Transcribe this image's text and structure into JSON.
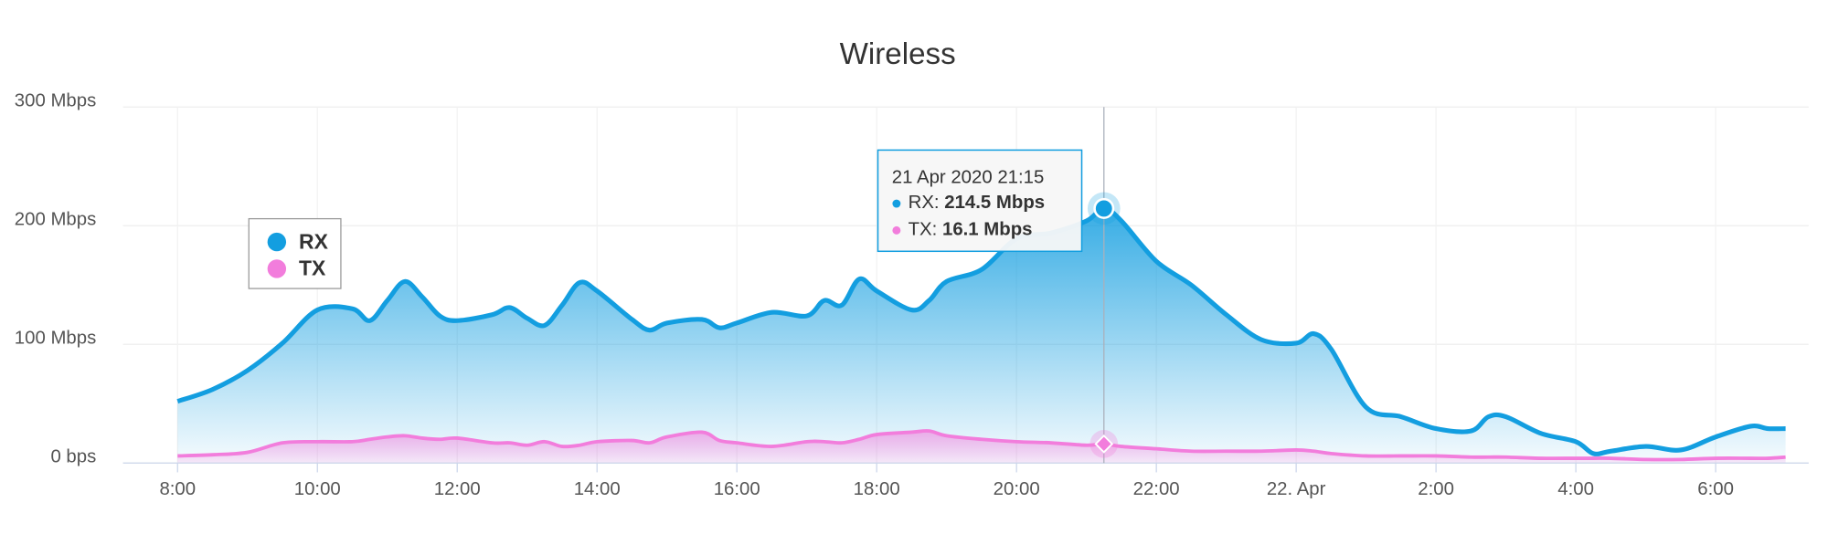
{
  "chart_data": {
    "type": "area",
    "title": "Wireless",
    "x": [
      8,
      8.5,
      9,
      9.5,
      10,
      10.5,
      10.75,
      11,
      11.25,
      11.5,
      11.75,
      12,
      12.5,
      12.75,
      13,
      13.25,
      13.5,
      13.75,
      14,
      14.5,
      14.75,
      15,
      15.5,
      15.75,
      16,
      16.5,
      17,
      17.25,
      17.5,
      17.75,
      18,
      18.5,
      18.75,
      19,
      19.5,
      20,
      20.5,
      21,
      21.25,
      21.5,
      22,
      22.5,
      23,
      23.5,
      24,
      24.25,
      24.5,
      25,
      25.5,
      26,
      26.5,
      26.75,
      27,
      27.5,
      28,
      28.25,
      28.5,
      29,
      29.5,
      30,
      30.5,
      30.75,
      31
    ],
    "series": [
      {
        "name": "RX",
        "color": "#139ee0",
        "values": [
          52,
          62,
          78,
          101,
          129,
          130,
          120,
          137,
          153,
          140,
          124,
          120,
          125,
          131,
          122,
          116,
          133,
          152,
          145,
          121,
          112,
          118,
          121,
          114,
          118,
          127,
          124,
          137,
          133,
          155,
          145,
          129,
          137,
          153,
          163,
          189,
          194,
          204,
          214.5,
          204,
          170,
          150,
          125,
          104,
          101,
          109,
          96,
          47,
          39,
          29,
          27,
          39,
          39,
          25,
          18,
          8,
          10,
          14,
          11,
          22,
          31,
          29,
          29
        ]
      },
      {
        "name": "TX",
        "color": "#f27ddc",
        "values": [
          6,
          7,
          9,
          17,
          18,
          18,
          20,
          22,
          23,
          21,
          20,
          21,
          17,
          17,
          15,
          18,
          14,
          15,
          18,
          19,
          17,
          22,
          26,
          19,
          17,
          14,
          18,
          18,
          17,
          20,
          24,
          26,
          27,
          23,
          20,
          18,
          17,
          15,
          16.1,
          14,
          12,
          10,
          10,
          10,
          11,
          10,
          8,
          6,
          6,
          6,
          5,
          5,
          5,
          4,
          4,
          4,
          4,
          3,
          3,
          4,
          4,
          4,
          5
        ]
      }
    ],
    "xlim": [
      7.22,
      31.33
    ],
    "xticks": [
      {
        "value": 8,
        "label": "8:00"
      },
      {
        "value": 10,
        "label": "10:00"
      },
      {
        "value": 12,
        "label": "12:00"
      },
      {
        "value": 14,
        "label": "14:00"
      },
      {
        "value": 16,
        "label": "16:00"
      },
      {
        "value": 18,
        "label": "18:00"
      },
      {
        "value": 20,
        "label": "20:00"
      },
      {
        "value": 22,
        "label": "22:00"
      },
      {
        "value": 24,
        "label": "22. Apr"
      },
      {
        "value": 26,
        "label": "2:00"
      },
      {
        "value": 28,
        "label": "4:00"
      },
      {
        "value": 30,
        "label": "6:00"
      }
    ],
    "ylim": [
      0,
      300
    ],
    "yticks": [
      {
        "value": 0,
        "label": "0 bps"
      },
      {
        "value": 100,
        "label": "100 Mbps"
      },
      {
        "value": 200,
        "label": "200 Mbps"
      },
      {
        "value": 300,
        "label": "300 Mbps"
      }
    ],
    "grid": true,
    "legend": "upper left",
    "tooltip": {
      "x": 21.25,
      "x_label": "21 Apr 2020 21:15",
      "value_labels": [
        "214.5 Mbps",
        "16.1 Mbps"
      ]
    }
  }
}
